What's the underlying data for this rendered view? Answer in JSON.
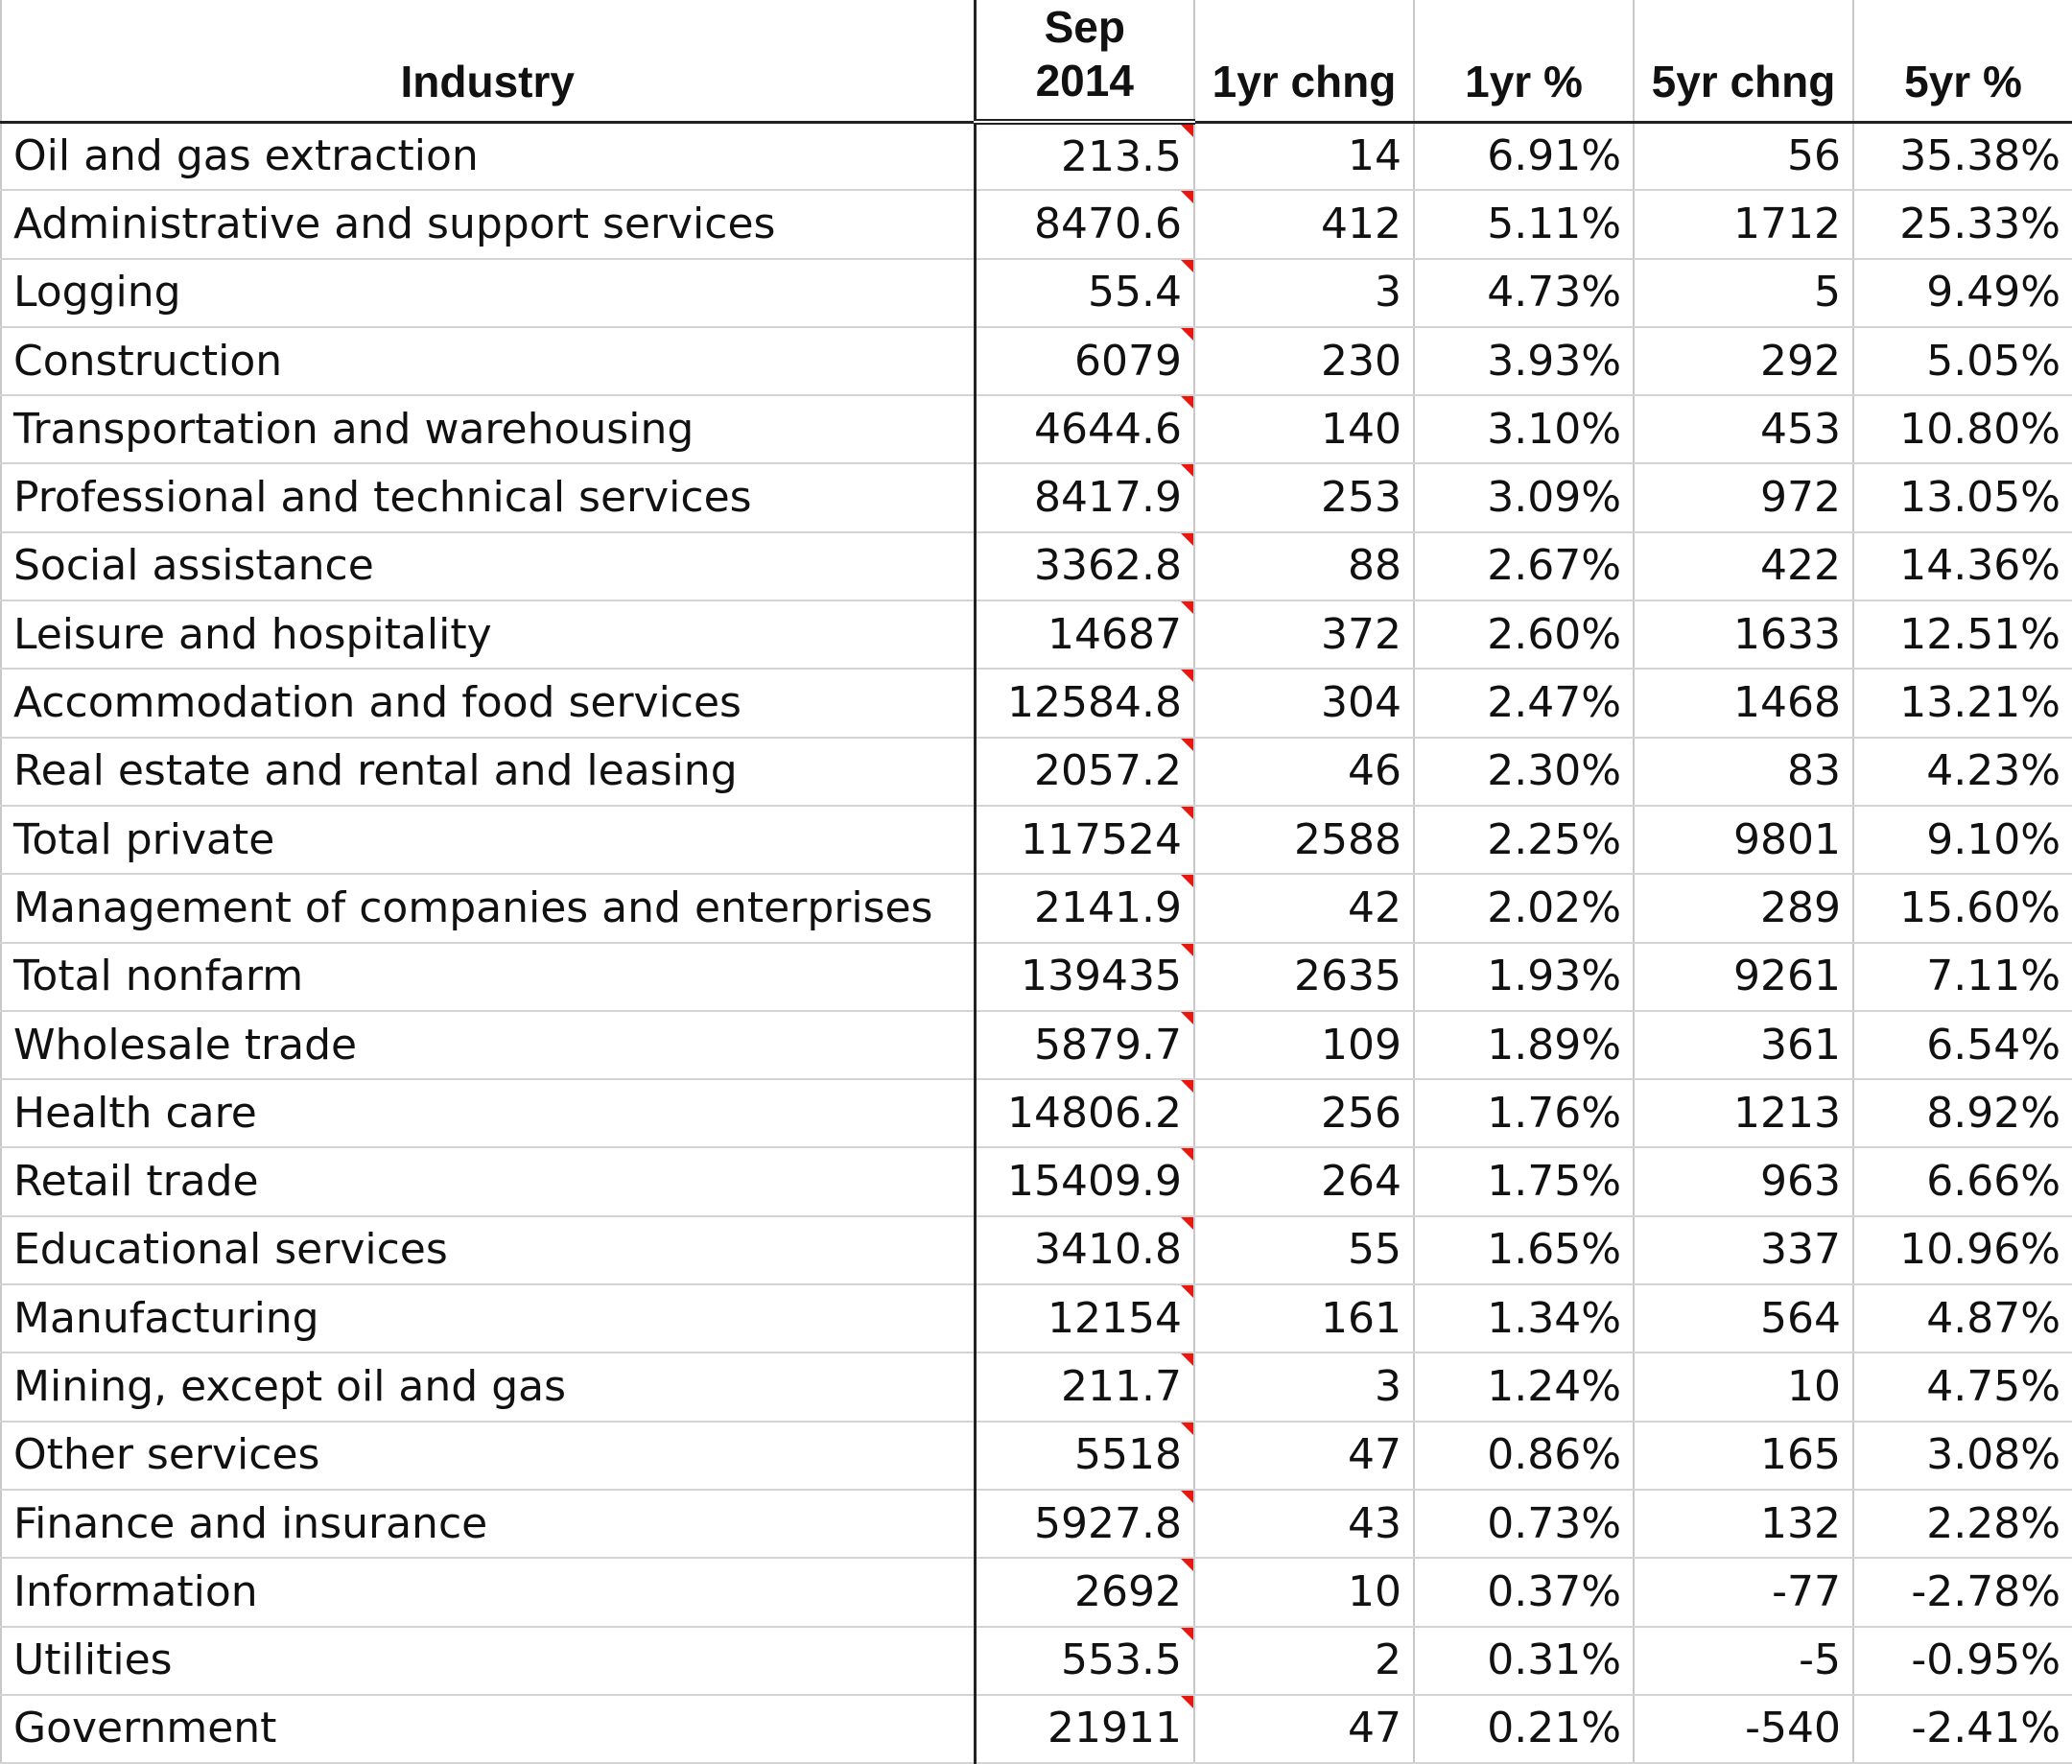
{
  "headers": {
    "industry": "Industry",
    "sep_line1": "Sep",
    "sep_line2": "2014",
    "chg1": "1yr chng",
    "pct1": "1yr %",
    "chg5": "5yr chng",
    "pct5": "5yr %"
  },
  "comment_marker_color": "#e8170f",
  "rows": [
    {
      "industry": "Oil and gas extraction",
      "sep2014": "213.5",
      "chg1": "14",
      "pct1": "6.91%",
      "chg5": "56",
      "pct5": "35.38%"
    },
    {
      "industry": "Administrative and support services",
      "sep2014": "8470.6",
      "chg1": "412",
      "pct1": "5.11%",
      "chg5": "1712",
      "pct5": "25.33%"
    },
    {
      "industry": "Logging",
      "sep2014": "55.4",
      "chg1": "3",
      "pct1": "4.73%",
      "chg5": "5",
      "pct5": "9.49%"
    },
    {
      "industry": "Construction",
      "sep2014": "6079",
      "chg1": "230",
      "pct1": "3.93%",
      "chg5": "292",
      "pct5": "5.05%"
    },
    {
      "industry": "Transportation and warehousing",
      "sep2014": "4644.6",
      "chg1": "140",
      "pct1": "3.10%",
      "chg5": "453",
      "pct5": "10.80%"
    },
    {
      "industry": "Professional and technical services",
      "sep2014": "8417.9",
      "chg1": "253",
      "pct1": "3.09%",
      "chg5": "972",
      "pct5": "13.05%"
    },
    {
      "industry": "Social assistance",
      "sep2014": "3362.8",
      "chg1": "88",
      "pct1": "2.67%",
      "chg5": "422",
      "pct5": "14.36%"
    },
    {
      "industry": "Leisure and hospitality",
      "sep2014": "14687",
      "chg1": "372",
      "pct1": "2.60%",
      "chg5": "1633",
      "pct5": "12.51%"
    },
    {
      "industry": "Accommodation and food services",
      "sep2014": "12584.8",
      "chg1": "304",
      "pct1": "2.47%",
      "chg5": "1468",
      "pct5": "13.21%"
    },
    {
      "industry": "Real estate and rental and leasing",
      "sep2014": "2057.2",
      "chg1": "46",
      "pct1": "2.30%",
      "chg5": "83",
      "pct5": "4.23%"
    },
    {
      "industry": "Total private",
      "sep2014": "117524",
      "chg1": "2588",
      "pct1": "2.25%",
      "chg5": "9801",
      "pct5": "9.10%"
    },
    {
      "industry": "Management of companies and enterprises",
      "sep2014": "2141.9",
      "chg1": "42",
      "pct1": "2.02%",
      "chg5": "289",
      "pct5": "15.60%"
    },
    {
      "industry": "Total nonfarm",
      "sep2014": "139435",
      "chg1": "2635",
      "pct1": "1.93%",
      "chg5": "9261",
      "pct5": "7.11%"
    },
    {
      "industry": "Wholesale trade",
      "sep2014": "5879.7",
      "chg1": "109",
      "pct1": "1.89%",
      "chg5": "361",
      "pct5": "6.54%"
    },
    {
      "industry": "Health care",
      "sep2014": "14806.2",
      "chg1": "256",
      "pct1": "1.76%",
      "chg5": "1213",
      "pct5": "8.92%"
    },
    {
      "industry": "Retail trade",
      "sep2014": "15409.9",
      "chg1": "264",
      "pct1": "1.75%",
      "chg5": "963",
      "pct5": "6.66%"
    },
    {
      "industry": "Educational services",
      "sep2014": "3410.8",
      "chg1": "55",
      "pct1": "1.65%",
      "chg5": "337",
      "pct5": "10.96%"
    },
    {
      "industry": "Manufacturing",
      "sep2014": "12154",
      "chg1": "161",
      "pct1": "1.34%",
      "chg5": "564",
      "pct5": "4.87%"
    },
    {
      "industry": "Mining, except oil and gas",
      "sep2014": "211.7",
      "chg1": "3",
      "pct1": "1.24%",
      "chg5": "10",
      "pct5": "4.75%"
    },
    {
      "industry": "Other services",
      "sep2014": "5518",
      "chg1": "47",
      "pct1": "0.86%",
      "chg5": "165",
      "pct5": "3.08%"
    },
    {
      "industry": "Finance and insurance",
      "sep2014": "5927.8",
      "chg1": "43",
      "pct1": "0.73%",
      "chg5": "132",
      "pct5": "2.28%"
    },
    {
      "industry": "Information",
      "sep2014": "2692",
      "chg1": "10",
      "pct1": "0.37%",
      "chg5": "-77",
      "pct5": "-2.78%"
    },
    {
      "industry": "Utilities",
      "sep2014": "553.5",
      "chg1": "2",
      "pct1": "0.31%",
      "chg5": "-5",
      "pct5": "-0.95%"
    },
    {
      "industry": "Government",
      "sep2014": "21911",
      "chg1": "47",
      "pct1": "0.21%",
      "chg5": "-540",
      "pct5": "-2.41%"
    }
  ]
}
